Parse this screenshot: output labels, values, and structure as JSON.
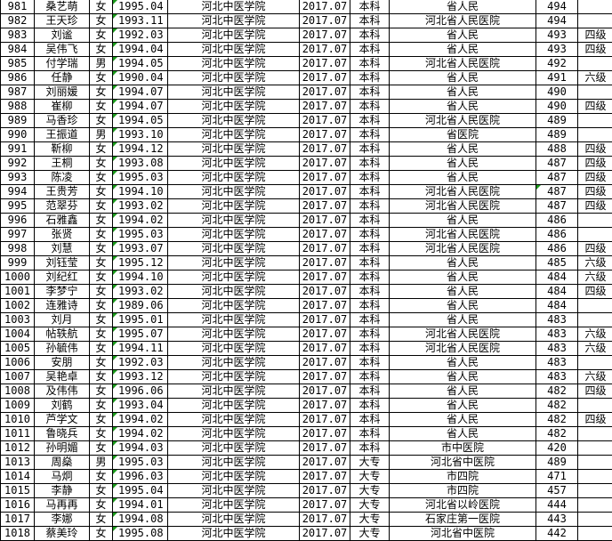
{
  "sheet": {
    "marker_color": "#1a9a1a",
    "rows": [
      [
        "981",
        "桑艺萌",
        "女",
        "1995.04",
        "河北中医学院",
        "2017.07",
        "本科",
        "省人民",
        "494",
        ""
      ],
      [
        "982",
        "王天珍",
        "女",
        "1993.11",
        "河北中医学院",
        "2017.07",
        "本科",
        "河北省人民医院",
        "494",
        ""
      ],
      [
        "983",
        "刘谧",
        "女",
        "1992.03",
        "河北中医学院",
        "2017.07",
        "本科",
        "省人民",
        "493",
        "四级"
      ],
      [
        "984",
        "吴伟飞",
        "女",
        "1994.04",
        "河北中医学院",
        "2017.07",
        "本科",
        "省人民",
        "493",
        "四级"
      ],
      [
        "985",
        "付学瑞",
        "男",
        "1994.05",
        "河北中医学院",
        "2017.07",
        "本科",
        "河北省人民医院",
        "492",
        ""
      ],
      [
        "986",
        "任静",
        "女",
        "1990.04",
        "河北中医学院",
        "2017.07",
        "本科",
        "省人民",
        "491",
        "六级"
      ],
      [
        "987",
        "刘丽媛",
        "女",
        "1994.07",
        "河北中医学院",
        "2017.07",
        "本科",
        "省人民",
        "490",
        ""
      ],
      [
        "988",
        "崔柳",
        "女",
        "1994.07",
        "河北中医学院",
        "2017.07",
        "本科",
        "省人民",
        "490",
        "四级"
      ],
      [
        "989",
        "马香珍",
        "女",
        "1994.05",
        "河北中医学院",
        "2017.07",
        "本科",
        "河北省人民医院",
        "489",
        ""
      ],
      [
        "990",
        "王振道",
        "男",
        "1993.10",
        "河北中医学院",
        "2017.07",
        "本科",
        "省医院",
        "489",
        ""
      ],
      [
        "991",
        "靳柳",
        "女",
        "1994.12",
        "河北中医学院",
        "2017.07",
        "本科",
        "省人民",
        "488",
        "四级"
      ],
      [
        "992",
        "王桐",
        "女",
        "1993.08",
        "河北中医学院",
        "2017.07",
        "本科",
        "省人民",
        "487",
        "四级"
      ],
      [
        "993",
        "陈凌",
        "女",
        "1995.03",
        "河北中医学院",
        "2017.07",
        "本科",
        "省人民",
        "487",
        "四级"
      ],
      [
        "994",
        "王贵芳",
        "女",
        "1994.10",
        "河北中医学院",
        "2017.07",
        "本科",
        "河北省人民医院",
        "487",
        "四级"
      ],
      [
        "995",
        "范翠芬",
        "女",
        "1993.02",
        "河北中医学院",
        "2017.07",
        "本科",
        "河北省人民医院",
        "487",
        "四级"
      ],
      [
        "996",
        "石雅鑫",
        "女",
        "1994.02",
        "河北中医学院",
        "2017.07",
        "本科",
        "省人民",
        "486",
        ""
      ],
      [
        "997",
        "张贤",
        "女",
        "1995.03",
        "河北中医学院",
        "2017.07",
        "本科",
        "河北省人民医院",
        "486",
        ""
      ],
      [
        "998",
        "刘慧",
        "女",
        "1993.07",
        "河北中医学院",
        "2017.07",
        "本科",
        "河北省人民医院",
        "486",
        "四级"
      ],
      [
        "999",
        "刘钰莹",
        "女",
        "1995.12",
        "河北中医学院",
        "2017.07",
        "本科",
        "省人民",
        "485",
        "六级"
      ],
      [
        "1000",
        "刘纪红",
        "女",
        "1994.10",
        "河北中医学院",
        "2017.07",
        "本科",
        "省人民",
        "484",
        "六级"
      ],
      [
        "1001",
        "李梦宁",
        "女",
        "1993.02",
        "河北中医学院",
        "2017.07",
        "本科",
        "省人民",
        "484",
        "四级"
      ],
      [
        "1002",
        "连雅诗",
        "女",
        "1989.06",
        "河北中医学院",
        "2017.07",
        "本科",
        "省人民",
        "484",
        ""
      ],
      [
        "1003",
        "刘月",
        "女",
        "1995.01",
        "河北中医学院",
        "2017.07",
        "本科",
        "省人民",
        "483",
        ""
      ],
      [
        "1004",
        "帖轶航",
        "女",
        "1995.07",
        "河北中医学院",
        "2017.07",
        "本科",
        "河北省人民医院",
        "483",
        "六级"
      ],
      [
        "1005",
        "孙毓伟",
        "女",
        "1994.11",
        "河北中医学院",
        "2017.07",
        "本科",
        "河北省人民医院",
        "483",
        "六级"
      ],
      [
        "1006",
        "安朋",
        "女",
        "1992.03",
        "河北中医学院",
        "2017.07",
        "本科",
        "省人民",
        "483",
        ""
      ],
      [
        "1007",
        "吴艳卓",
        "女",
        "1993.12",
        "河北中医学院",
        "2017.07",
        "本科",
        "省人民",
        "483",
        "六级"
      ],
      [
        "1008",
        "及伟伟",
        "女",
        "1996.06",
        "河北中医学院",
        "2017.07",
        "本科",
        "省人民",
        "482",
        "四级"
      ],
      [
        "1009",
        "刘鹤",
        "女",
        "1993.04",
        "河北中医学院",
        "2017.07",
        "本科",
        "省人民",
        "482",
        ""
      ],
      [
        "1010",
        "芦学文",
        "女",
        "1994.02",
        "河北中医学院",
        "2017.07",
        "本科",
        "省人民",
        "482",
        "四级"
      ],
      [
        "1011",
        "鲁晓兵",
        "女",
        "1994.02",
        "河北中医学院",
        "2017.07",
        "本科",
        "省人民",
        "482",
        ""
      ],
      [
        "1012",
        "孙明媚",
        "女",
        "1994.03",
        "河北中医学院",
        "2017.07",
        "本科",
        "市中医院",
        "420",
        ""
      ],
      [
        "1013",
        "周燊",
        "男",
        "1995.03",
        "河北中医学院",
        "2017.07",
        "大专",
        "河北省中医院",
        "489",
        ""
      ],
      [
        "1014",
        "马炯",
        "女",
        "1996.03",
        "河北中医学院",
        "2017.07",
        "大专",
        "市四院",
        "471",
        ""
      ],
      [
        "1015",
        "李静",
        "女",
        "1995.04",
        "河北中医学院",
        "2017.07",
        "大专",
        "市四院",
        "457",
        ""
      ],
      [
        "1016",
        "马再再",
        "女",
        "1994.01",
        "河北中医学院",
        "2017.07",
        "大专",
        "河北省以岭医院",
        "444",
        ""
      ],
      [
        "1017",
        "李娜",
        "女",
        "1994.08",
        "河北中医学院",
        "2017.07",
        "大专",
        "石家庄第一医院",
        "443",
        ""
      ],
      [
        "1018",
        "蔡美玲",
        "女",
        "1995.08",
        "河北中医学院",
        "2017.07",
        "大专",
        "河北省中医院",
        "442",
        ""
      ]
    ]
  }
}
